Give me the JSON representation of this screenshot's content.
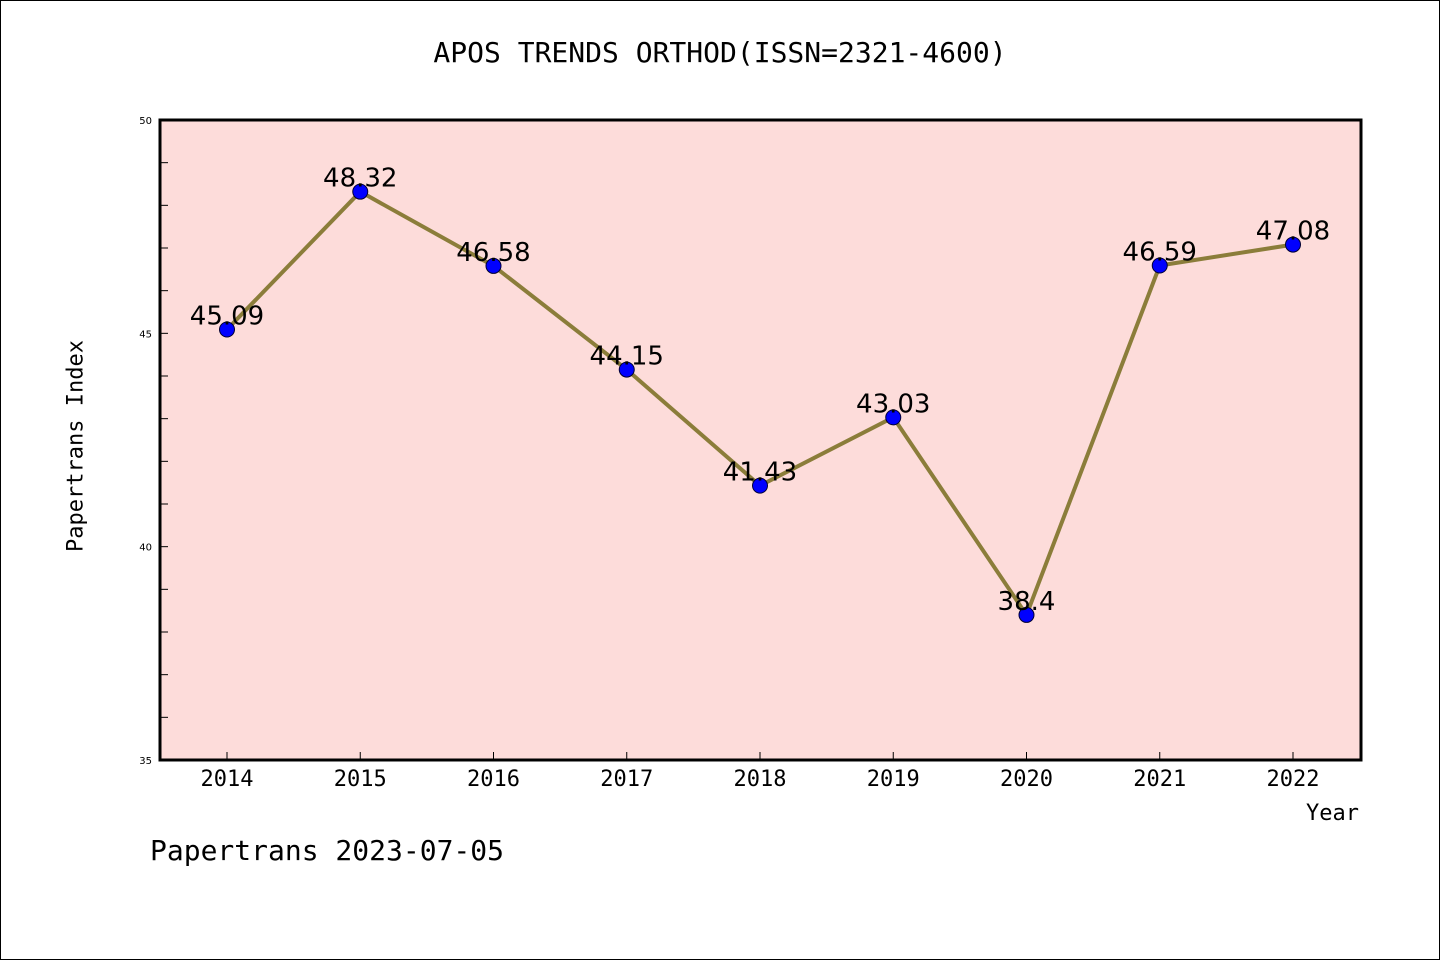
{
  "chart_data": {
    "type": "line",
    "title": "APOS TRENDS ORTHOD(ISSN=2321-4600)",
    "xlabel": "Year",
    "ylabel": "Papertrans Index",
    "categories": [
      "2014",
      "2015",
      "2016",
      "2017",
      "2018",
      "2019",
      "2020",
      "2021",
      "2022"
    ],
    "values": [
      45.09,
      48.32,
      46.58,
      44.15,
      41.43,
      43.03,
      38.4,
      46.59,
      47.08
    ],
    "data_labels": [
      "45.09",
      "48.32",
      "46.58",
      "44.15",
      "41.43",
      "43.03",
      "38.4",
      "46.59",
      "47.08"
    ],
    "ylim": [
      35,
      50
    ],
    "yticks": [
      35,
      40,
      45,
      50
    ],
    "ytick_labels": [
      "35",
      "40",
      "45",
      "50"
    ],
    "grid": false,
    "plot_background": "#fddcda",
    "line_color": "#8b7d3a",
    "marker_color": "#0000ff"
  },
  "footer": "Papertrans 2023-07-05"
}
